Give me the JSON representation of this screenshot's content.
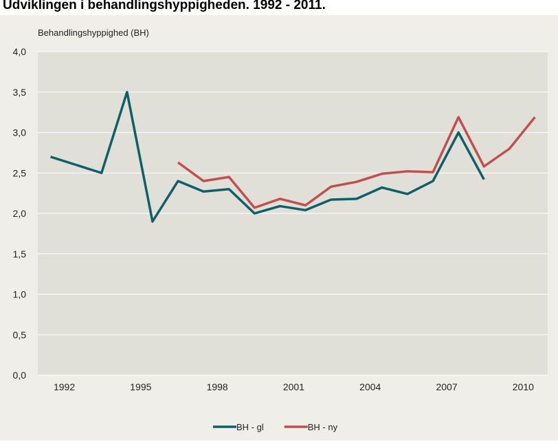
{
  "chart_data": {
    "type": "line",
    "title": "Udviklingen i behandlingshyppigheden. 1992 - 2011.",
    "y_label": "Behandlingshyppighed (BH)",
    "categories": [
      "1992",
      null,
      null,
      "1995",
      null,
      null,
      "1998",
      null,
      null,
      "2001",
      null,
      null,
      "2004",
      null,
      null,
      "2007",
      null,
      null,
      "2010",
      null
    ],
    "series": [
      {
        "name": "BH - gl",
        "color": "#0e5f68",
        "values": [
          2.7,
          2.6,
          2.5,
          3.5,
          1.9,
          2.4,
          2.27,
          2.3,
          2.0,
          2.09,
          2.04,
          2.17,
          2.18,
          2.32,
          2.24,
          2.4,
          3.0,
          2.42,
          null,
          null
        ]
      },
      {
        "name": "BH - ny",
        "color": "#c0504f",
        "values": [
          null,
          null,
          null,
          null,
          null,
          2.63,
          2.4,
          2.45,
          2.07,
          2.18,
          2.1,
          2.33,
          2.39,
          2.49,
          2.52,
          2.51,
          3.19,
          2.58,
          2.8,
          3.19
        ]
      }
    ],
    "ylim": [
      0,
      4
    ],
    "yticks": [
      {
        "value": 0,
        "label": "0,0"
      },
      {
        "value": 0.5,
        "label": "0,5"
      },
      {
        "value": 1,
        "label": "1,0"
      },
      {
        "value": 1.5,
        "label": "1,5"
      },
      {
        "value": 2,
        "label": "2,0"
      },
      {
        "value": 2.5,
        "label": "2,5"
      },
      {
        "value": 3,
        "label": "3,0"
      },
      {
        "value": 3.5,
        "label": "3,5"
      },
      {
        "value": 4,
        "label": "4,0"
      }
    ],
    "grid": true,
    "legend": "bottom"
  }
}
